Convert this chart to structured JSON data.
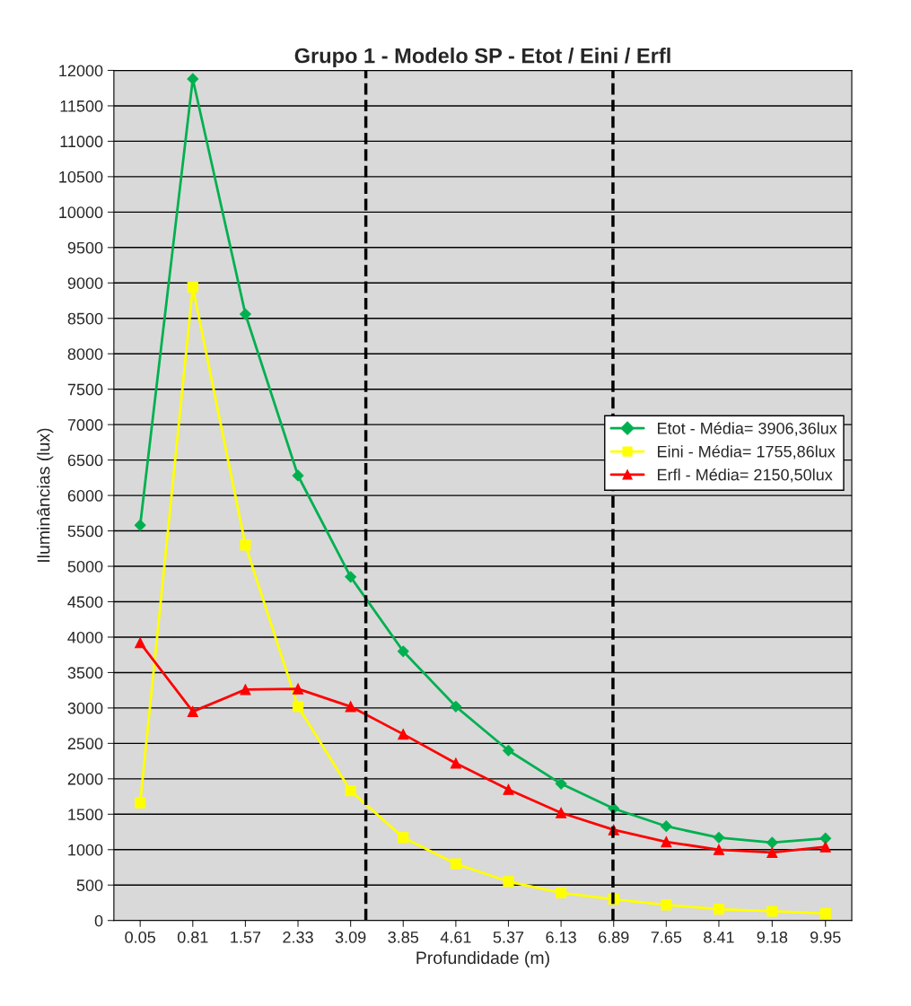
{
  "chart_data": {
    "type": "line",
    "title": "Grupo 1 - Modelo SP - Etot / Eini / Erfl",
    "xlabel": "Profundidade (m)",
    "ylabel": "Iluminâncias (lux)",
    "x": [
      0.05,
      0.81,
      1.57,
      2.33,
      3.09,
      3.85,
      4.61,
      5.37,
      6.13,
      6.89,
      7.65,
      8.41,
      9.18,
      9.95
    ],
    "xlim": [
      -0.33,
      10.33
    ],
    "xticks": [
      0.05,
      0.81,
      1.57,
      2.33,
      3.09,
      3.85,
      4.61,
      5.37,
      6.13,
      6.89,
      7.65,
      8.41,
      9.18,
      9.95
    ],
    "series": [
      {
        "name": "Etot - Média= 3906,36lux",
        "color": "#00b050",
        "marker": "diamond",
        "values": [
          5580,
          11880,
          8560,
          6280,
          4850,
          3800,
          3020,
          2400,
          1930,
          1580,
          1330,
          1170,
          1100,
          1160
        ]
      },
      {
        "name": "Eini - Média= 1755,86lux",
        "color": "#ffff00",
        "marker": "square",
        "values": [
          1660,
          8940,
          5300,
          3020,
          1830,
          1170,
          800,
          550,
          390,
          300,
          220,
          160,
          130,
          100
        ]
      },
      {
        "name": "Erfl - Média= 2150,50lux",
        "color": "#ff0000",
        "marker": "triangle",
        "values": [
          3920,
          2950,
          3260,
          3270,
          3020,
          2630,
          2220,
          1850,
          1520,
          1280,
          1110,
          1000,
          960,
          1040
        ]
      }
    ],
    "ylim": [
      0,
      12000
    ],
    "yticks": [
      0,
      500,
      1000,
      1500,
      2000,
      2500,
      3000,
      3500,
      4000,
      4500,
      5000,
      5500,
      6000,
      6500,
      7000,
      7500,
      8000,
      8500,
      9000,
      9500,
      10000,
      10500,
      11000,
      11500,
      12000
    ],
    "ref_lines": [
      {
        "axis": "x",
        "value": 3.31,
        "color": "#000000",
        "line_style": "dashed"
      },
      {
        "axis": "x",
        "value": 6.88,
        "color": "#000000",
        "line_style": "dashed"
      }
    ],
    "grid": "y",
    "legend": "right",
    "line_style": "solid"
  }
}
